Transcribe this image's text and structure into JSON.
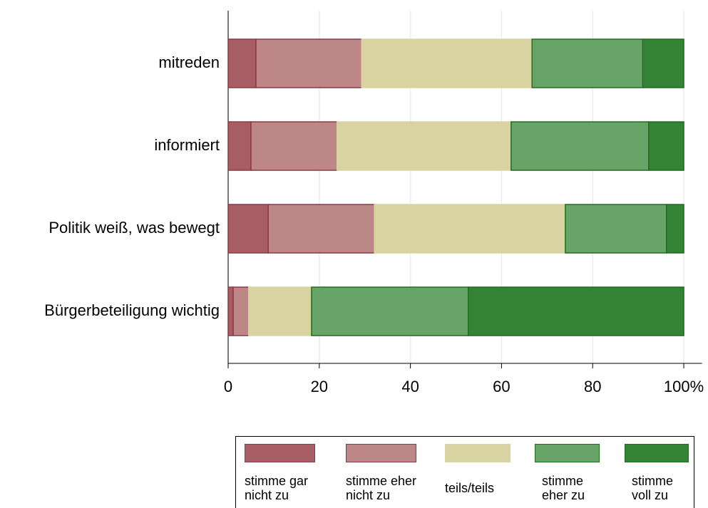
{
  "chart_data": {
    "type": "stacked_barh",
    "categories": [
      "mitreden",
      "informiert",
      "Politik weiß, was bewegt",
      "Bürgerbeteiligung wichtig"
    ],
    "series": [
      {
        "name": "stimme gar\nnicht zu",
        "color": "#a65e64",
        "edge": "#8c3a46",
        "values": [
          6.1,
          5.0,
          8.8,
          1.1
        ]
      },
      {
        "name": "stimme eher\nnicht zu",
        "color": "#bd8788",
        "edge": "#8c3a46",
        "values": [
          23.2,
          18.9,
          23.3,
          3.4
        ]
      },
      {
        "name": "teils/teils",
        "color": "#d9d3a1",
        "edge": "#d9d3a1",
        "values": [
          37.4,
          38.2,
          41.9,
          13.8
        ]
      },
      {
        "name": "stimme\neher zu",
        "color": "#68a468",
        "edge": "#1f6e1f",
        "values": [
          24.3,
          30.2,
          22.2,
          34.4
        ]
      },
      {
        "name": "stimme\nvoll zu",
        "color": "#348234",
        "edge": "#1f6e1f",
        "values": [
          9.0,
          7.7,
          3.8,
          47.3
        ]
      }
    ],
    "xlim": [
      0,
      104
    ],
    "xticks": [
      0,
      20,
      40,
      60,
      80,
      {
        "value": 100,
        "label": "100%"
      }
    ],
    "grid": true
  }
}
